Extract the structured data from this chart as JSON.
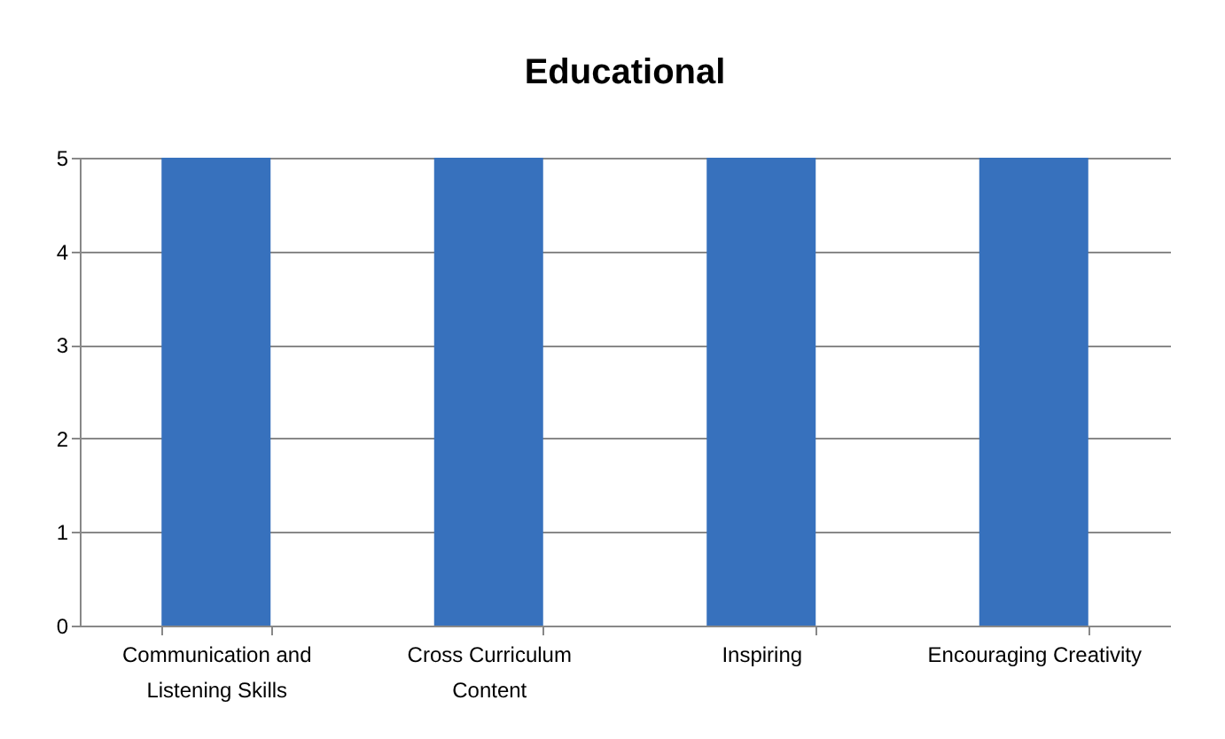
{
  "chart_data": {
    "type": "bar",
    "title": "Educational",
    "categories": [
      "Communication and Listening Skills",
      "Cross Curriculum Content",
      "Inspiring",
      "Encouraging Creativity"
    ],
    "values": [
      5,
      5,
      5,
      5
    ],
    "color": "#3771bd",
    "ylim": [
      0,
      5
    ],
    "yticks": [
      0,
      1,
      2,
      3,
      4,
      5
    ],
    "grid": "y",
    "legend": false
  }
}
